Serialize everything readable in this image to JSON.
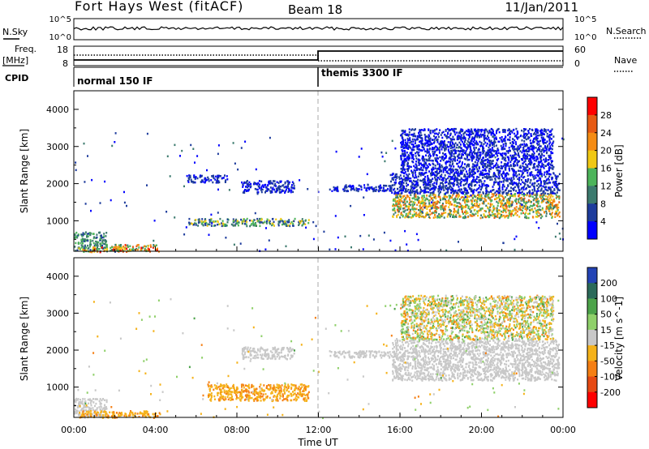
{
  "header": {
    "station": "Fort Hays West (fitACF)",
    "beam": "Beam 18",
    "date": "11/Jan/2011"
  },
  "params": {
    "nsky_label": "N.Sky",
    "nsearch_label": "N.Search",
    "freq_label_1": "Freq.",
    "freq_label_2": "[MHz]",
    "nave_label": "Nave",
    "cpid_label": "CPID",
    "nsky_ticks": [
      "10^5",
      "10^0"
    ],
    "nsearch_ticks": [
      "10^5",
      "10^0"
    ],
    "freq_ticks": [
      "18",
      "8"
    ],
    "nave_ticks": [
      "60",
      "0"
    ],
    "modes": [
      {
        "label": "normal 150 IF",
        "start_hour": 0,
        "end_hour": 12
      },
      {
        "label": "themis 3300 IF",
        "start_hour": 12,
        "end_hour": 24
      }
    ]
  },
  "chart_data": [
    {
      "type": "heatmap",
      "title": "",
      "xlabel": "",
      "ylabel": "Slant Range [km]",
      "xlim": [
        0,
        24
      ],
      "ylim": [
        180,
        4500
      ],
      "yticks": [
        1000,
        2000,
        3000,
        4000
      ],
      "colorbar_label": "Power [dB]",
      "colorbar_ticks": [
        "4",
        "8",
        "12",
        "16",
        "20",
        "24",
        "28"
      ],
      "colorbar_range": [
        0,
        30
      ],
      "colors": [
        "#0000ff",
        "#1e3c9c",
        "#3c7a6e",
        "#4cb45a",
        "#f0c814",
        "#f58c14",
        "#e65a14",
        "#ff0000"
      ],
      "regions": [
        {
          "t": [
            0.0,
            1.6
          ],
          "r": [
            200,
            720
          ],
          "v": [
            6,
            14
          ]
        },
        {
          "t": [
            0.2,
            2.4
          ],
          "r": [
            180,
            330
          ],
          "v": [
            8,
            28
          ]
        },
        {
          "t": [
            2.0,
            4.2
          ],
          "r": [
            190,
            380
          ],
          "v": [
            10,
            28
          ]
        },
        {
          "t": [
            5.6,
            11.5
          ],
          "r": [
            880,
            1080
          ],
          "v": [
            4,
            18
          ]
        },
        {
          "t": [
            8.2,
            10.8
          ],
          "r": [
            1780,
            2100
          ],
          "v": [
            2,
            6
          ]
        },
        {
          "t": [
            5.5,
            7.5
          ],
          "r": [
            2050,
            2250
          ],
          "v": [
            2,
            6
          ]
        },
        {
          "t": [
            12.5,
            15.6
          ],
          "r": [
            1820,
            2000
          ],
          "v": [
            2,
            6
          ]
        },
        {
          "t": [
            15.6,
            23.8
          ],
          "r": [
            1100,
            1750
          ],
          "v": [
            8,
            24
          ]
        },
        {
          "t": [
            15.5,
            23.8
          ],
          "r": [
            1750,
            2300
          ],
          "v": [
            2,
            6
          ]
        },
        {
          "t": [
            16.0,
            23.5
          ],
          "r": [
            2300,
            3500
          ],
          "v": [
            2,
            5
          ]
        }
      ]
    },
    {
      "type": "heatmap",
      "title": "",
      "xlabel": "Time UT",
      "ylabel": "Slant Range [km]",
      "xlim": [
        0,
        24
      ],
      "ylim": [
        180,
        4500
      ],
      "yticks": [
        1000,
        2000,
        3000,
        4000
      ],
      "xticks": [
        "00:00",
        "04:00",
        "08:00",
        "12:00",
        "16:00",
        "20:00",
        "00:00"
      ],
      "xtick_hours": [
        0,
        4,
        8,
        12,
        16,
        20,
        24
      ],
      "colorbar_label": "Velocity [m s^-1]",
      "colorbar_ticks": [
        "200",
        "100",
        "50",
        "15",
        "-15",
        "-50",
        "-100",
        "-200"
      ],
      "colors": [
        "#2343b5",
        "#2b6a5a",
        "#4ca34a",
        "#8fd06a",
        "#c8c8c8",
        "#f5b21a",
        "#f57f14",
        "#e64a14",
        "#ff0000"
      ],
      "regions": [
        {
          "t": [
            0.0,
            1.6
          ],
          "r": [
            200,
            720
          ],
          "v": [
            -10,
            10
          ]
        },
        {
          "t": [
            0.2,
            4.2
          ],
          "r": [
            190,
            380
          ],
          "v": [
            -60,
            -20
          ]
        },
        {
          "t": [
            6.5,
            11.5
          ],
          "r": [
            650,
            1100
          ],
          "v": [
            -60,
            -30
          ]
        },
        {
          "t": [
            8.2,
            10.8
          ],
          "r": [
            1780,
            2100
          ],
          "v": [
            -12,
            12
          ]
        },
        {
          "t": [
            12.5,
            15.6
          ],
          "r": [
            1820,
            2000
          ],
          "v": [
            -12,
            12
          ]
        },
        {
          "t": [
            15.6,
            23.8
          ],
          "r": [
            1200,
            2300
          ],
          "v": [
            -12,
            12
          ]
        },
        {
          "t": [
            16.0,
            23.5
          ],
          "r": [
            2300,
            3500
          ],
          "v": [
            -60,
            60
          ]
        }
      ]
    }
  ]
}
